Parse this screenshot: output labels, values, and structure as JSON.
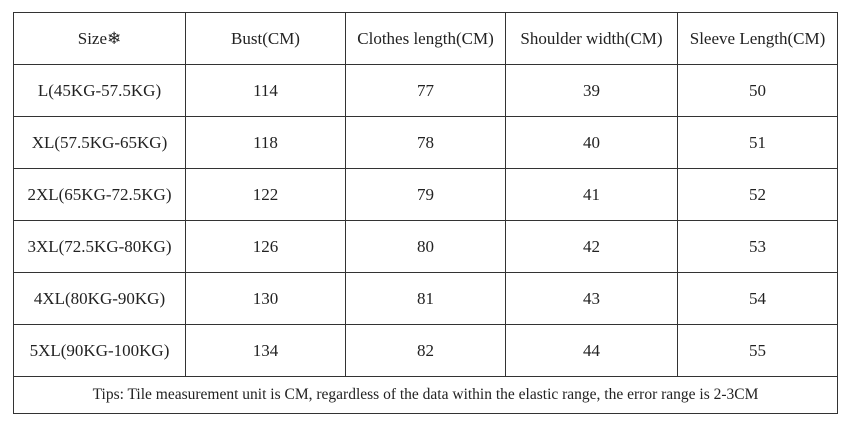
{
  "table": {
    "header": [
      "Size❄",
      "Bust(CM)",
      "Clothes length(CM)",
      "Shoulder width(CM)",
      "Sleeve Length(CM)"
    ],
    "rows": [
      [
        "L(45KG-57.5KG)",
        114,
        77,
        39,
        50
      ],
      [
        "XL(57.5KG-65KG)",
        118,
        78,
        40,
        51
      ],
      [
        "2XL(65KG-72.5KG)",
        122,
        79,
        41,
        52
      ],
      [
        "3XL(72.5KG-80KG)",
        126,
        80,
        42,
        53
      ],
      [
        "4XL(80KG-90KG)",
        130,
        81,
        43,
        54
      ],
      [
        "5XL(90KG-100KG)",
        134,
        82,
        44,
        55
      ]
    ],
    "tips": "Tips: Tile measurement unit is CM, regardless of the data within the elastic range, the error range is 2-3CM"
  }
}
